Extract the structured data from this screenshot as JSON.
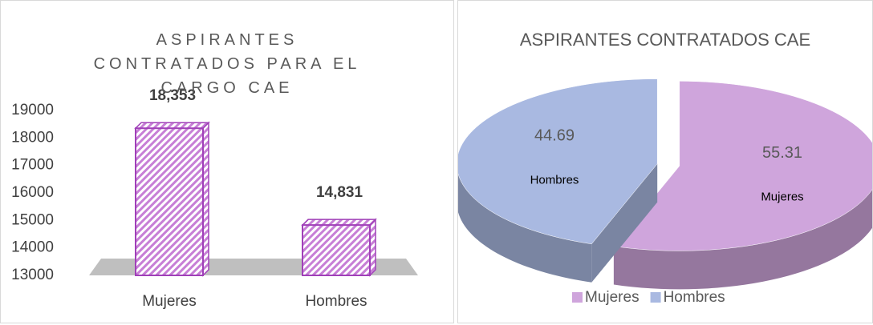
{
  "chart_data": [
    {
      "type": "bar3d",
      "title": "ASPIRANTES CONTRATADOS PARA EL CARGO CAE",
      "categories": [
        "Mujeres",
        "Hombres"
      ],
      "values": [
        18353,
        14831
      ],
      "value_labels": [
        "18,353",
        "14,831"
      ],
      "color": "#c77fd6",
      "ylim": [
        13000,
        19000
      ],
      "yticks": [
        13000,
        14000,
        15000,
        16000,
        17000,
        18000,
        19000
      ]
    },
    {
      "type": "pie3d",
      "title": "ASPIRANTES CONTRATADOS CAE",
      "categories": [
        "Mujeres",
        "Hombres"
      ],
      "values": [
        55.31,
        44.69
      ],
      "colors": [
        "#cfa5dc",
        "#a9b9e1"
      ],
      "legend": "bottom"
    }
  ]
}
